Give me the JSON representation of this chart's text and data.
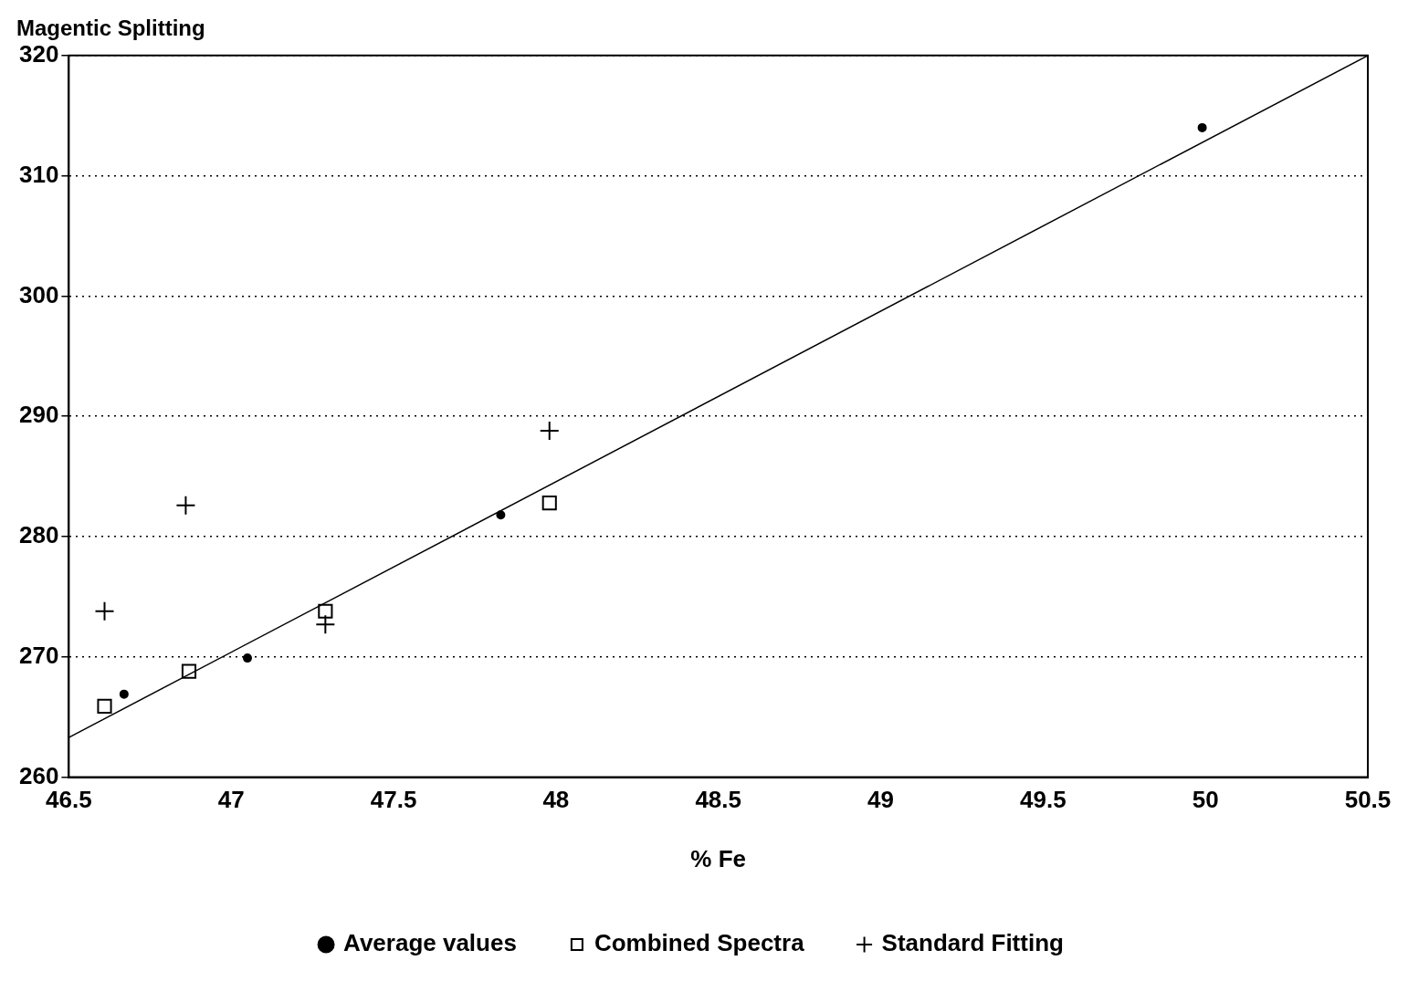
{
  "chart_data": {
    "type": "scatter",
    "xlabel": "% Fe",
    "ylabel": "Magentic Splitting",
    "xlim": [
      46.5,
      50.5
    ],
    "xticks": [
      46.5,
      47,
      47.5,
      48,
      48.5,
      49,
      49.5,
      50,
      50.5
    ],
    "ylim": [
      260,
      320
    ],
    "yticks": [
      260,
      270,
      280,
      290,
      300,
      310,
      320
    ],
    "grid": "y",
    "legend": "bottom",
    "series": [
      {
        "name": "Average values",
        "marker": "circle",
        "color": "#000000",
        "x": [
          46.67,
          47.05,
          47.83,
          49.99
        ],
        "values": [
          266.9,
          269.9,
          281.8,
          314.0
        ]
      },
      {
        "name": "Combined Spectra",
        "marker": "square",
        "color": "#000000",
        "x": [
          46.61,
          46.87,
          47.29,
          47.98
        ],
        "values": [
          265.9,
          268.8,
          273.8,
          282.8
        ]
      },
      {
        "name": "Standard Fitting",
        "marker": "cross",
        "color": "#000000",
        "x": [
          46.61,
          46.86,
          47.29,
          47.98
        ],
        "values": [
          273.8,
          282.6,
          272.7,
          288.8
        ]
      },
      {
        "type": "line",
        "marker": "none",
        "color": "#000000",
        "x": [
          46.5,
          50.5
        ],
        "values": [
          263.3,
          320
        ]
      }
    ]
  }
}
